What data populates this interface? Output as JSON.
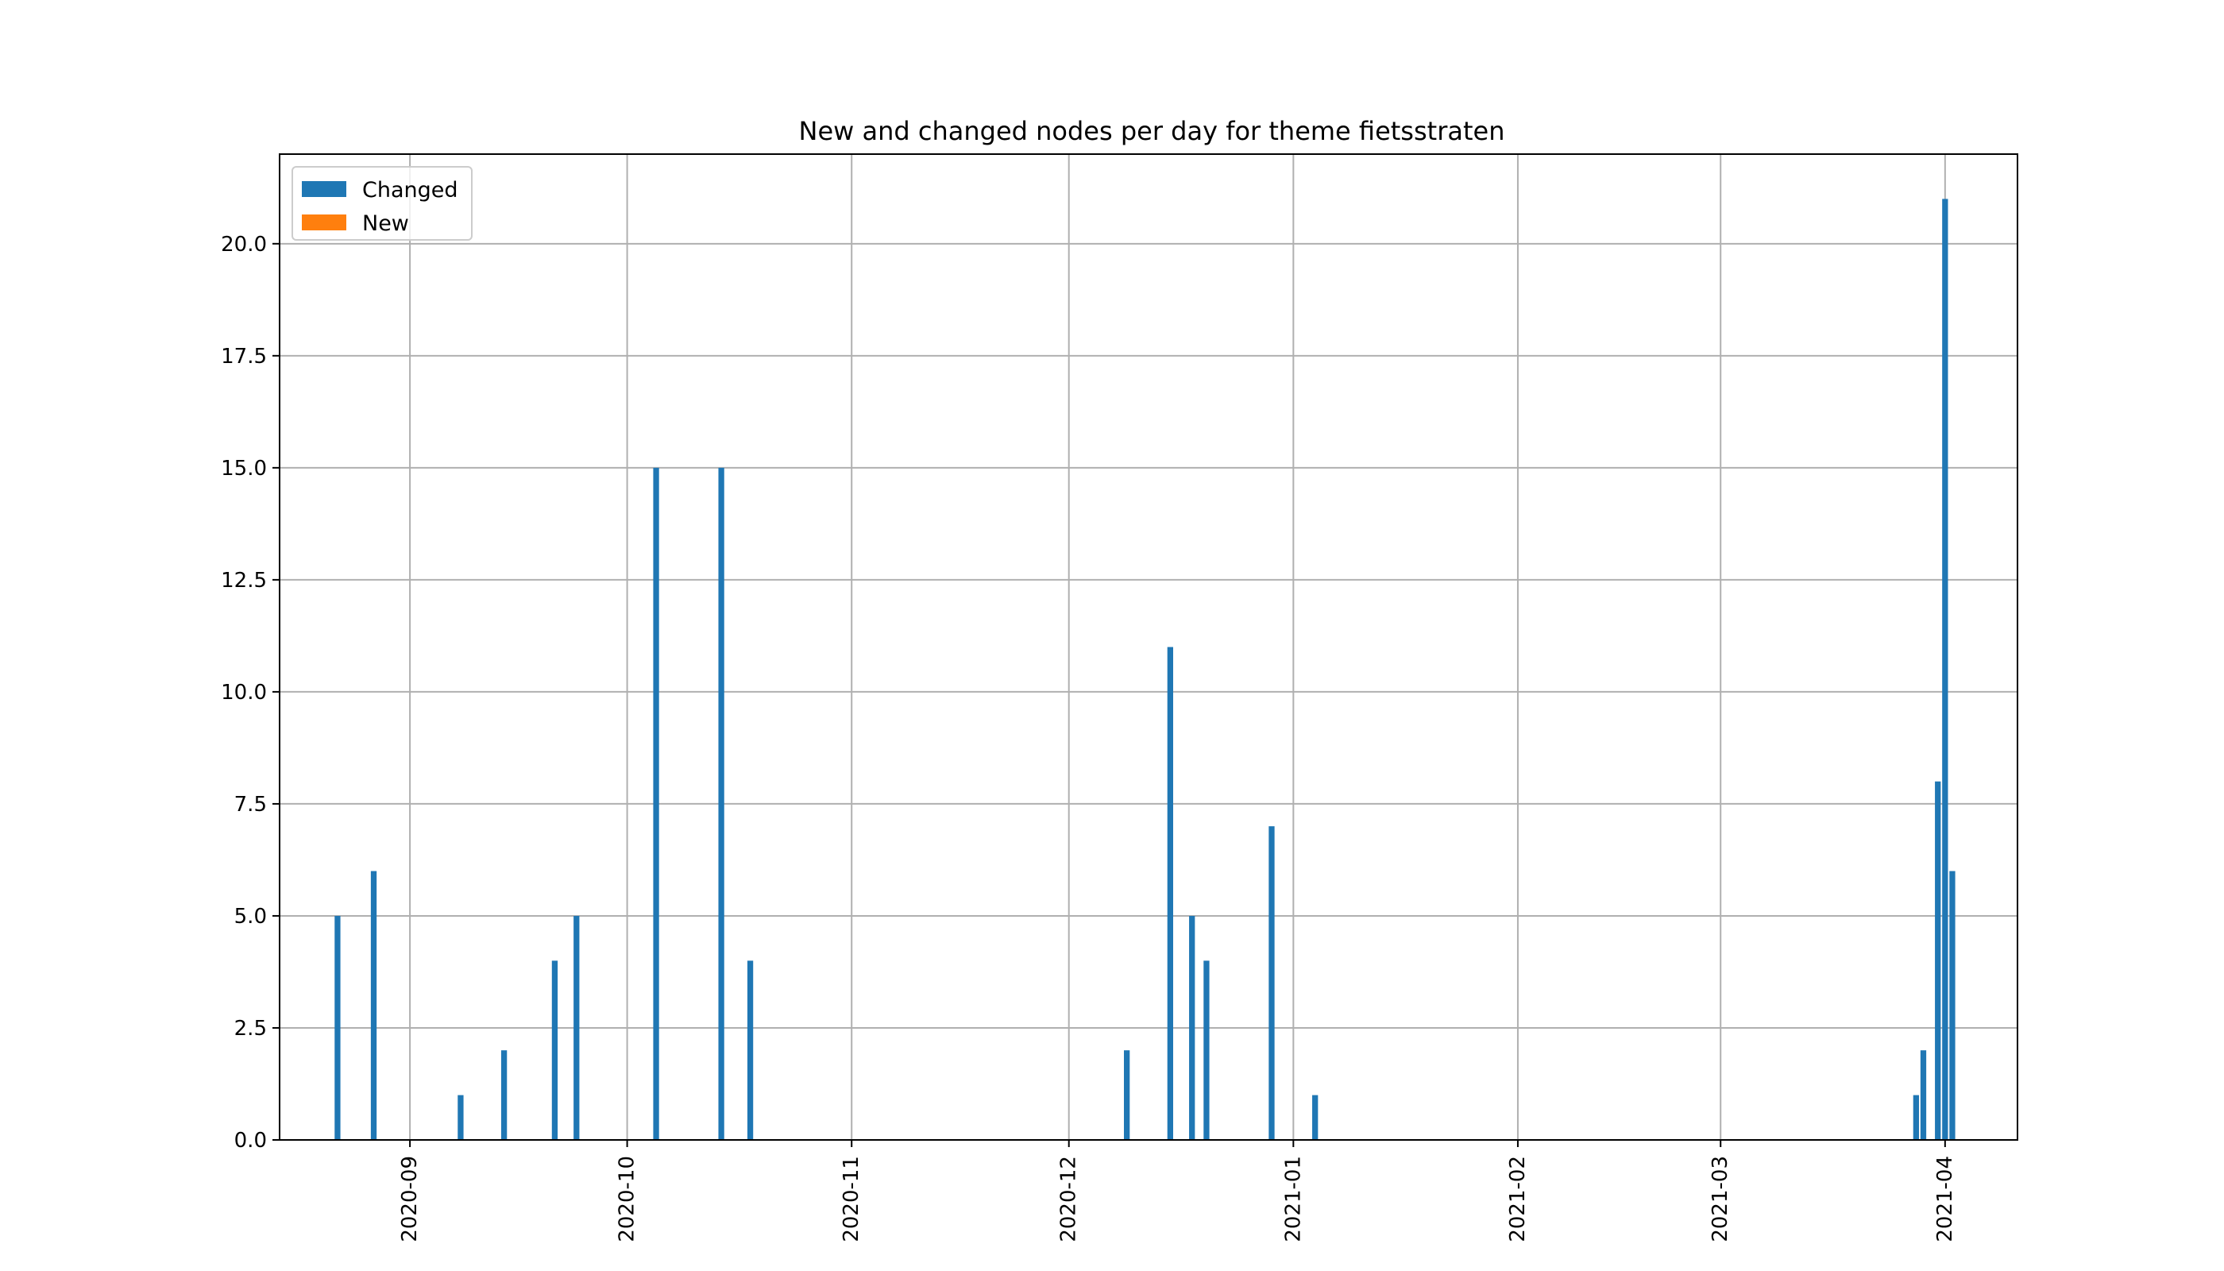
{
  "chart_data": {
    "type": "bar",
    "title": "New and changed nodes per day for theme fietsstraten",
    "xlabel": "",
    "ylabel": "",
    "x_type": "date",
    "xlim": [
      "2020-08-14",
      "2021-04-11"
    ],
    "ylim": [
      0,
      22
    ],
    "x_ticks": [
      "2020-09-01",
      "2020-10-01",
      "2020-11-01",
      "2020-12-01",
      "2021-01-01",
      "2021-02-01",
      "2021-03-01",
      "2021-04-01"
    ],
    "x_tick_labels": [
      "2020-09",
      "2020-10",
      "2020-11",
      "2020-12",
      "2021-01",
      "2021-02",
      "2021-03",
      "2021-04"
    ],
    "y_ticks": [
      0,
      2.5,
      5,
      7.5,
      10,
      12.5,
      15,
      17.5,
      20
    ],
    "y_tick_labels": [
      "0.0",
      "2.5",
      "5.0",
      "7.5",
      "10.0",
      "12.5",
      "15.0",
      "17.5",
      "20.0"
    ],
    "grid": true,
    "legend_position": "top-left",
    "series": [
      {
        "name": "Changed",
        "color": "#1f77b4",
        "points": [
          {
            "x": "2020-08-22",
            "y": 5
          },
          {
            "x": "2020-08-27",
            "y": 6
          },
          {
            "x": "2020-09-08",
            "y": 1
          },
          {
            "x": "2020-09-14",
            "y": 2
          },
          {
            "x": "2020-09-21",
            "y": 4
          },
          {
            "x": "2020-09-24",
            "y": 5
          },
          {
            "x": "2020-10-05",
            "y": 15
          },
          {
            "x": "2020-10-14",
            "y": 15
          },
          {
            "x": "2020-10-18",
            "y": 4
          },
          {
            "x": "2020-12-09",
            "y": 2
          },
          {
            "x": "2020-12-15",
            "y": 11
          },
          {
            "x": "2020-12-18",
            "y": 5
          },
          {
            "x": "2020-12-20",
            "y": 4
          },
          {
            "x": "2020-12-29",
            "y": 7
          },
          {
            "x": "2021-01-04",
            "y": 1
          },
          {
            "x": "2021-03-28",
            "y": 1
          },
          {
            "x": "2021-03-29",
            "y": 2
          },
          {
            "x": "2021-03-31",
            "y": 8
          },
          {
            "x": "2021-04-01",
            "y": 21
          },
          {
            "x": "2021-04-02",
            "y": 6
          }
        ]
      },
      {
        "name": "New",
        "color": "#ff7f0e",
        "points": []
      }
    ]
  }
}
